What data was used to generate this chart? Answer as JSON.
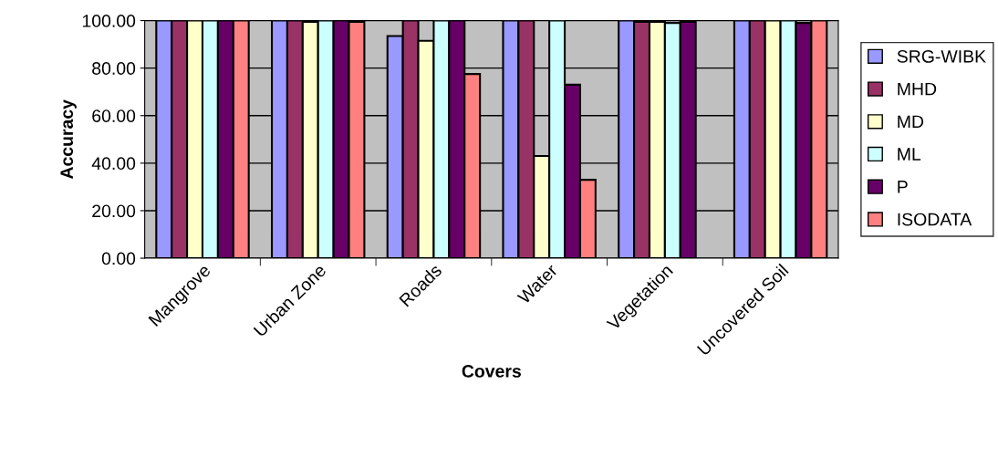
{
  "chart_data": {
    "type": "bar",
    "xlabel": "Covers",
    "ylabel": "Accuracy",
    "categories": [
      "Mangrove",
      "Urban Zone",
      "Roads",
      "Water",
      "Vegetation",
      "Uncovered Soil"
    ],
    "series": [
      {
        "name": "SRG-WIBK",
        "color": "#9999ff",
        "values": [
          100,
          100,
          93.5,
          100,
          100,
          100
        ]
      },
      {
        "name": "MHD",
        "color": "#993366",
        "values": [
          100,
          100,
          100,
          100,
          99.5,
          100
        ]
      },
      {
        "name": "MD",
        "color": "#ffffcc",
        "values": [
          100,
          99.5,
          91.5,
          43,
          99.5,
          100
        ]
      },
      {
        "name": "ML",
        "color": "#ccffff",
        "values": [
          100,
          100,
          100,
          100,
          99,
          100
        ]
      },
      {
        "name": "P",
        "color": "#660066",
        "values": [
          100,
          100,
          100,
          73,
          99.5,
          99
        ]
      },
      {
        "name": "ISODATA",
        "color": "#ff8080",
        "values": [
          100,
          99.5,
          77.5,
          33,
          null,
          100
        ]
      }
    ],
    "ylim": [
      0,
      100
    ],
    "yticks": [
      {
        "value": 0,
        "label": "0.00"
      },
      {
        "value": 20,
        "label": "20.00"
      },
      {
        "value": 40,
        "label": "40.00"
      },
      {
        "value": 60,
        "label": "60.00"
      },
      {
        "value": 80,
        "label": "80.00"
      },
      {
        "value": 100,
        "label": "100.00"
      }
    ],
    "grid": "y",
    "legend": "right"
  }
}
